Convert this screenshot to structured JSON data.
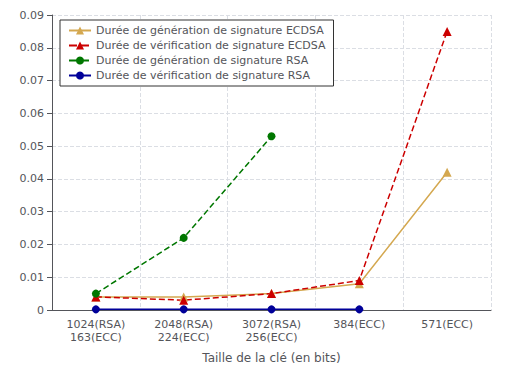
{
  "chart_data": {
    "type": "line",
    "xlabel": "Taille de la clé (en bits)",
    "categories": [
      "1024(RSA)\n163(ECC)",
      "2048(RSA)\n224(ECC)",
      "3072(RSA)\n256(ECC)",
      "384(ECC)",
      "571(ECC)"
    ],
    "ylim": [
      0,
      0.09
    ],
    "yticks": [
      0,
      0.01,
      0.02,
      0.03,
      0.04,
      0.05,
      0.06,
      0.07,
      0.08,
      0.09
    ],
    "grid": true,
    "legend": "upper left",
    "series": [
      {
        "name": "Durée de génération de signature ECDSA",
        "color": "#d4a850",
        "marker": "triangle",
        "line_style": "solid",
        "values": [
          0.004,
          0.004,
          0.005,
          0.008,
          0.042
        ]
      },
      {
        "name": "Durée de vérification de signature ECDSA",
        "color": "#cc0000",
        "marker": "triangle",
        "line_style": "dashed",
        "values": [
          0.004,
          0.003,
          0.005,
          0.009,
          0.085
        ]
      },
      {
        "name": "Durée de génération de signature RSA",
        "color": "#007700",
        "marker": "circle",
        "line_style": "dashed",
        "values": [
          0.005,
          0.022,
          0.053,
          null,
          null
        ]
      },
      {
        "name": "Durée de vérification de signature RSA",
        "color": "#000099",
        "marker": "circle",
        "line_style": "solid",
        "values": [
          0.0002,
          0.0002,
          0.0002,
          0.0002,
          null
        ]
      }
    ]
  }
}
